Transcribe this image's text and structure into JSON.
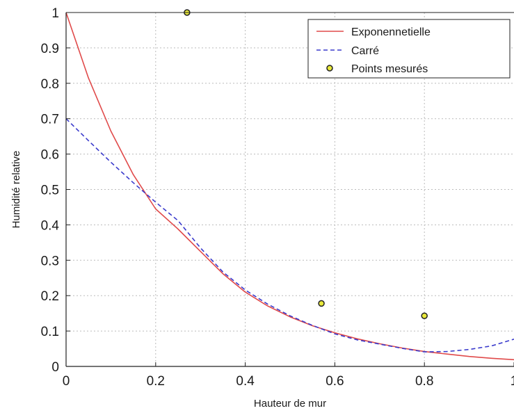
{
  "chart_data": {
    "type": "line",
    "xlabel": "Hauteur de mur",
    "ylabel": "Humidité relative",
    "xlim": [
      0,
      1
    ],
    "ylim": [
      0,
      1
    ],
    "grid": true,
    "legend_position": "top-right",
    "x_ticks": [
      {
        "value": 0,
        "label": "0"
      },
      {
        "value": 0.2,
        "label": "0.2"
      },
      {
        "value": 0.4,
        "label": "0.4"
      },
      {
        "value": 0.6,
        "label": "0.6"
      },
      {
        "value": 0.8,
        "label": "0.8"
      },
      {
        "value": 1.0,
        "label": "1"
      }
    ],
    "y_ticks": [
      {
        "value": 0,
        "label": "0"
      },
      {
        "value": 0.1,
        "label": "0.1"
      },
      {
        "value": 0.2,
        "label": "0.2"
      },
      {
        "value": 0.3,
        "label": "0.3"
      },
      {
        "value": 0.4,
        "label": "0.4"
      },
      {
        "value": 0.5,
        "label": "0.5"
      },
      {
        "value": 0.6,
        "label": "0.6"
      },
      {
        "value": 0.7,
        "label": "0.7"
      },
      {
        "value": 0.8,
        "label": "0.8"
      },
      {
        "value": 0.9,
        "label": "0.9"
      },
      {
        "value": 1.0,
        "label": "1"
      }
    ],
    "series": [
      {
        "name": "Exponennetielle",
        "kind": "line",
        "style": "solid",
        "color": "#e04a4a",
        "x": [
          0,
          0.05,
          0.1,
          0.15,
          0.2,
          0.25,
          0.3,
          0.35,
          0.4,
          0.45,
          0.5,
          0.55,
          0.6,
          0.65,
          0.7,
          0.75,
          0.8,
          0.85,
          0.9,
          0.95,
          1.0
        ],
        "y": [
          1.0,
          0.815,
          0.665,
          0.542,
          0.445,
          0.388,
          0.325,
          0.262,
          0.21,
          0.171,
          0.14,
          0.115,
          0.095,
          0.078,
          0.064,
          0.052,
          0.042,
          0.035,
          0.028,
          0.023,
          0.019
        ]
      },
      {
        "name": "Carré",
        "kind": "line",
        "style": "dashed",
        "color": "#3a3acc",
        "x": [
          0,
          0.05,
          0.1,
          0.15,
          0.2,
          0.25,
          0.3,
          0.35,
          0.4,
          0.45,
          0.5,
          0.55,
          0.6,
          0.65,
          0.7,
          0.75,
          0.8,
          0.85,
          0.9,
          0.95,
          1.0
        ],
        "y": [
          0.7,
          0.638,
          0.577,
          0.519,
          0.464,
          0.412,
          0.335,
          0.267,
          0.216,
          0.176,
          0.143,
          0.116,
          0.092,
          0.075,
          0.063,
          0.051,
          0.041,
          0.042,
          0.048,
          0.058,
          0.077
        ]
      },
      {
        "name": "Points mesurés",
        "kind": "scatter",
        "color": "#e8e83a",
        "edge_color": "#222222",
        "x": [
          0.27,
          0.57,
          0.8
        ],
        "y": [
          1.0,
          0.178,
          0.143
        ]
      }
    ]
  }
}
